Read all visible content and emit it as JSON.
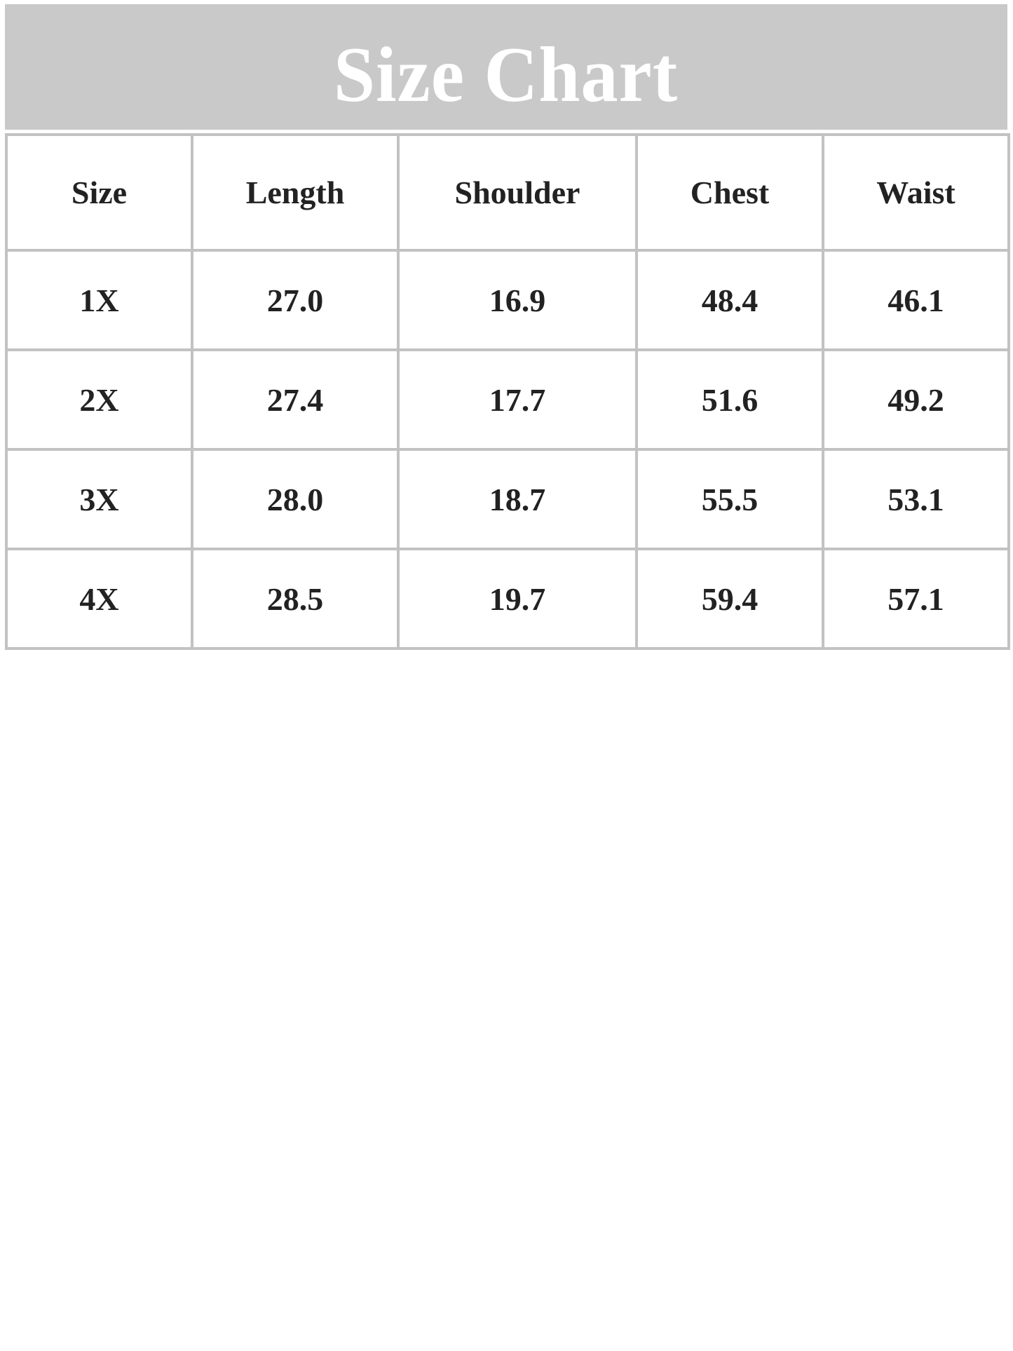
{
  "banner": {
    "title": "Size Chart"
  },
  "chart_data": {
    "type": "table",
    "title": "Size Chart",
    "columns": [
      "Size",
      "Length",
      "Shoulder",
      "Chest",
      "Waist"
    ],
    "rows": [
      [
        "1X",
        "27.0",
        "16.9",
        "48.4",
        "46.1"
      ],
      [
        "2X",
        "27.4",
        "17.7",
        "51.6",
        "49.2"
      ],
      [
        "3X",
        "28.0",
        "18.7",
        "55.5",
        "53.1"
      ],
      [
        "4X",
        "28.5",
        "19.7",
        "59.4",
        "57.1"
      ]
    ]
  },
  "colors": {
    "banner_bg": "#c9c9c9",
    "grid_border": "#c2c2c2",
    "cell_text": "#222222",
    "title_text": "#ffffff",
    "page_bg": "#ffffff"
  }
}
